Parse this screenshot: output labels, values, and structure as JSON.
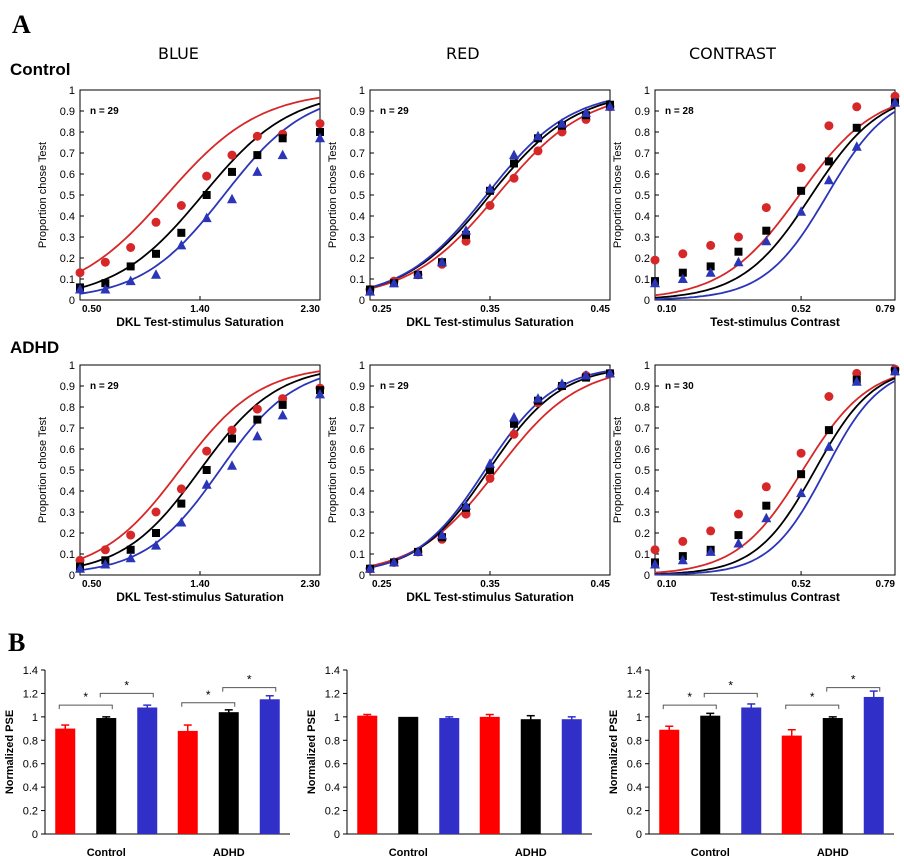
{
  "panel_a_label": "A",
  "panel_b_label": "B",
  "column_headers": [
    "BLUE",
    "RED",
    "CONTRAST"
  ],
  "row_headers": [
    "Control",
    "ADHD"
  ],
  "colors": {
    "red": "#d62828",
    "black": "#000000",
    "blue": "#2b35b8",
    "bar_red": "#ff0000",
    "bar_black": "#000000",
    "bar_blue": "#3030c8"
  },
  "chart_data": [
    {
      "id": "control-blue",
      "type": "scatter",
      "annotation": "n = 29",
      "xlabel": "DKL Test-stimulus Saturation",
      "ylabel": "Proportion chose Test",
      "xlim": [
        0.5,
        2.3
      ],
      "ylim": [
        0,
        1
      ],
      "xticks": [
        "0.50",
        "1.40",
        "2.30"
      ],
      "yticks": [
        "0",
        "0.1",
        "0.2",
        "0.3",
        "0.4",
        "0.5",
        "0.6",
        "0.7",
        "0.8",
        "0.9",
        "1"
      ],
      "fits": {
        "red": [
          1.15,
          0.35
        ],
        "black": [
          1.42,
          0.33
        ],
        "blue": [
          1.58,
          0.31
        ]
      },
      "series": [
        {
          "color": "red",
          "marker": "circle",
          "x": [
            0.5,
            0.69,
            0.88,
            1.07,
            1.26,
            1.45,
            1.64,
            1.83,
            2.02,
            2.3
          ],
          "y": [
            0.13,
            0.18,
            0.25,
            0.37,
            0.45,
            0.59,
            0.69,
            0.78,
            0.79,
            0.84
          ]
        },
        {
          "color": "black",
          "marker": "square",
          "x": [
            0.5,
            0.69,
            0.88,
            1.07,
            1.26,
            1.45,
            1.64,
            1.83,
            2.02,
            2.3
          ],
          "y": [
            0.06,
            0.08,
            0.16,
            0.22,
            0.32,
            0.5,
            0.61,
            0.69,
            0.77,
            0.8
          ]
        },
        {
          "color": "blue",
          "marker": "triangle",
          "x": [
            0.5,
            0.69,
            0.88,
            1.07,
            1.26,
            1.45,
            1.64,
            1.83,
            2.02,
            2.3
          ],
          "y": [
            0.05,
            0.05,
            0.09,
            0.12,
            0.26,
            0.39,
            0.48,
            0.61,
            0.69,
            0.77
          ]
        }
      ]
    },
    {
      "id": "control-red",
      "type": "scatter",
      "annotation": "n = 29",
      "xlabel": "DKL Test-stimulus Saturation",
      "ylabel": "Proportion chose Test",
      "xlim": [
        0.25,
        0.45
      ],
      "ylim": [
        0,
        1
      ],
      "xticks": [
        "0.25",
        "0.35",
        "0.45"
      ],
      "yticks": [
        "0",
        "0.1",
        "0.2",
        "0.3",
        "0.4",
        "0.5",
        "0.6",
        "0.7",
        "0.8",
        "0.9",
        "1"
      ],
      "fits": {
        "red": [
          0.356,
          0.037
        ],
        "black": [
          0.35,
          0.036
        ],
        "blue": [
          0.347,
          0.035
        ]
      },
      "series": [
        {
          "color": "red",
          "marker": "circle",
          "x": [
            0.25,
            0.27,
            0.29,
            0.31,
            0.33,
            0.35,
            0.37,
            0.39,
            0.41,
            0.43,
            0.45
          ],
          "y": [
            0.05,
            0.09,
            0.12,
            0.17,
            0.28,
            0.45,
            0.58,
            0.71,
            0.8,
            0.86,
            0.92
          ]
        },
        {
          "color": "black",
          "marker": "square",
          "x": [
            0.25,
            0.27,
            0.29,
            0.31,
            0.33,
            0.35,
            0.37,
            0.39,
            0.41,
            0.43,
            0.45
          ],
          "y": [
            0.05,
            0.08,
            0.12,
            0.18,
            0.31,
            0.52,
            0.65,
            0.77,
            0.83,
            0.88,
            0.93
          ]
        },
        {
          "color": "blue",
          "marker": "triangle",
          "x": [
            0.25,
            0.27,
            0.29,
            0.31,
            0.33,
            0.35,
            0.37,
            0.39,
            0.41,
            0.43,
            0.45
          ],
          "y": [
            0.04,
            0.08,
            0.12,
            0.18,
            0.33,
            0.53,
            0.69,
            0.78,
            0.84,
            0.89,
            0.92
          ]
        }
      ]
    },
    {
      "id": "control-contrast",
      "type": "scatter",
      "annotation": "n = 28",
      "xlabel": "Test-stimulus Contrast",
      "ylabel": "Proportion chose Test",
      "xlim": [
        0.1,
        0.79
      ],
      "ylim": [
        0,
        1
      ],
      "xticks": [
        "0.10",
        "0.52",
        "0.79"
      ],
      "yticks": [
        "0",
        "0.1",
        "0.2",
        "0.3",
        "0.4",
        "0.5",
        "0.6",
        "0.7",
        "0.8",
        "0.9",
        "1"
      ],
      "fits": {
        "red": [
          0.515,
          0.11
        ],
        "black": [
          0.55,
          0.1
        ],
        "blue": [
          0.595,
          0.09
        ]
      },
      "series": [
        {
          "color": "red",
          "marker": "circle",
          "x": [
            0.1,
            0.18,
            0.26,
            0.34,
            0.42,
            0.52,
            0.6,
            0.68,
            0.79
          ],
          "y": [
            0.19,
            0.22,
            0.26,
            0.3,
            0.44,
            0.63,
            0.83,
            0.92,
            0.97
          ]
        },
        {
          "color": "black",
          "marker": "square",
          "x": [
            0.1,
            0.18,
            0.26,
            0.34,
            0.42,
            0.52,
            0.6,
            0.68,
            0.79
          ],
          "y": [
            0.09,
            0.13,
            0.16,
            0.23,
            0.33,
            0.52,
            0.66,
            0.82,
            0.94
          ]
        },
        {
          "color": "blue",
          "marker": "triangle",
          "x": [
            0.1,
            0.18,
            0.26,
            0.34,
            0.42,
            0.52,
            0.6,
            0.68,
            0.79
          ],
          "y": [
            0.08,
            0.1,
            0.13,
            0.18,
            0.28,
            0.42,
            0.57,
            0.73,
            0.94
          ]
        }
      ]
    },
    {
      "id": "adhd-blue",
      "type": "scatter",
      "annotation": "n = 29",
      "xlabel": "DKL Test-stimulus Saturation",
      "ylabel": "Proportion chose Test",
      "xlim": [
        0.5,
        2.3
      ],
      "ylim": [
        0,
        1
      ],
      "xticks": [
        "0.50",
        "1.40",
        "2.30"
      ],
      "yticks": [
        "0",
        "0.1",
        "0.2",
        "0.3",
        "0.4",
        "0.5",
        "0.6",
        "0.7",
        "0.8",
        "0.9",
        "1"
      ],
      "fits": {
        "red": [
          1.25,
          0.3
        ],
        "black": [
          1.4,
          0.29
        ],
        "blue": [
          1.55,
          0.28
        ]
      },
      "series": [
        {
          "color": "red",
          "marker": "circle",
          "x": [
            0.5,
            0.69,
            0.88,
            1.07,
            1.26,
            1.45,
            1.64,
            1.83,
            2.02,
            2.3
          ],
          "y": [
            0.07,
            0.12,
            0.19,
            0.3,
            0.41,
            0.59,
            0.69,
            0.79,
            0.84,
            0.89
          ]
        },
        {
          "color": "black",
          "marker": "square",
          "x": [
            0.5,
            0.69,
            0.88,
            1.07,
            1.26,
            1.45,
            1.64,
            1.83,
            2.02,
            2.3
          ],
          "y": [
            0.04,
            0.07,
            0.12,
            0.2,
            0.34,
            0.5,
            0.65,
            0.74,
            0.81,
            0.88
          ]
        },
        {
          "color": "blue",
          "marker": "triangle",
          "x": [
            0.5,
            0.69,
            0.88,
            1.07,
            1.26,
            1.45,
            1.64,
            1.83,
            2.02,
            2.3
          ],
          "y": [
            0.03,
            0.05,
            0.08,
            0.14,
            0.25,
            0.43,
            0.52,
            0.66,
            0.76,
            0.86
          ]
        }
      ]
    },
    {
      "id": "adhd-red",
      "type": "scatter",
      "annotation": "n = 29",
      "xlabel": "DKL Test-stimulus Saturation",
      "ylabel": "Proportion chose Test",
      "xlim": [
        0.25,
        0.45
      ],
      "ylim": [
        0,
        1
      ],
      "xticks": [
        "0.25",
        "0.35",
        "0.45"
      ],
      "yticks": [
        "0",
        "0.1",
        "0.2",
        "0.3",
        "0.4",
        "0.5",
        "0.6",
        "0.7",
        "0.8",
        "0.9",
        "1"
      ],
      "fits": {
        "red": [
          0.356,
          0.034
        ],
        "black": [
          0.349,
          0.03
        ],
        "blue": [
          0.346,
          0.029
        ]
      },
      "series": [
        {
          "color": "red",
          "marker": "circle",
          "x": [
            0.25,
            0.27,
            0.29,
            0.31,
            0.33,
            0.35,
            0.37,
            0.39,
            0.41,
            0.43,
            0.45
          ],
          "y": [
            0.03,
            0.06,
            0.11,
            0.17,
            0.29,
            0.46,
            0.67,
            0.82,
            0.9,
            0.95,
            0.96
          ]
        },
        {
          "color": "black",
          "marker": "square",
          "x": [
            0.25,
            0.27,
            0.29,
            0.31,
            0.33,
            0.35,
            0.37,
            0.39,
            0.41,
            0.43,
            0.45
          ],
          "y": [
            0.03,
            0.06,
            0.11,
            0.18,
            0.32,
            0.5,
            0.72,
            0.83,
            0.9,
            0.94,
            0.96
          ]
        },
        {
          "color": "blue",
          "marker": "triangle",
          "x": [
            0.25,
            0.27,
            0.29,
            0.31,
            0.33,
            0.35,
            0.37,
            0.39,
            0.41,
            0.43,
            0.45
          ],
          "y": [
            0.03,
            0.06,
            0.11,
            0.19,
            0.33,
            0.53,
            0.75,
            0.84,
            0.91,
            0.95,
            0.96
          ]
        }
      ]
    },
    {
      "id": "adhd-contrast",
      "type": "scatter",
      "annotation": "n = 30",
      "xlabel": "Test-stimulus Contrast",
      "ylabel": "Proportion chose Test",
      "xlim": [
        0.1,
        0.79
      ],
      "ylim": [
        0,
        1
      ],
      "xticks": [
        "0.10",
        "0.52",
        "0.79"
      ],
      "yticks": [
        "0",
        "0.1",
        "0.2",
        "0.3",
        "0.4",
        "0.5",
        "0.6",
        "0.7",
        "0.8",
        "0.9",
        "1"
      ],
      "fits": {
        "red": [
          0.525,
          0.095
        ],
        "black": [
          0.56,
          0.085
        ],
        "blue": [
          0.59,
          0.08
        ]
      },
      "series": [
        {
          "color": "red",
          "marker": "circle",
          "x": [
            0.1,
            0.18,
            0.26,
            0.34,
            0.42,
            0.52,
            0.6,
            0.68,
            0.79
          ],
          "y": [
            0.12,
            0.16,
            0.21,
            0.29,
            0.42,
            0.58,
            0.85,
            0.96,
            0.98
          ]
        },
        {
          "color": "black",
          "marker": "square",
          "x": [
            0.1,
            0.18,
            0.26,
            0.34,
            0.42,
            0.52,
            0.6,
            0.68,
            0.79
          ],
          "y": [
            0.06,
            0.09,
            0.12,
            0.19,
            0.33,
            0.48,
            0.69,
            0.93,
            0.97
          ]
        },
        {
          "color": "blue",
          "marker": "triangle",
          "x": [
            0.1,
            0.18,
            0.26,
            0.34,
            0.42,
            0.52,
            0.6,
            0.68,
            0.79
          ],
          "y": [
            0.05,
            0.07,
            0.11,
            0.15,
            0.27,
            0.39,
            0.61,
            0.92,
            0.97
          ]
        }
      ]
    },
    {
      "id": "pse-blue",
      "type": "bar",
      "ylabel": "Normalized PSE",
      "ylim": [
        0,
        1.4
      ],
      "yticks": [
        "0",
        "0.2",
        "0.4",
        "0.6",
        "0.8",
        "1",
        "1.2",
        "1.4"
      ],
      "categories": [
        "Control",
        "ADHD"
      ],
      "series": [
        {
          "color": "red",
          "values": [
            0.9,
            0.88
          ],
          "errors": [
            0.03,
            0.05
          ]
        },
        {
          "color": "black",
          "values": [
            0.99,
            1.04
          ],
          "errors": [
            0.01,
            0.02
          ]
        },
        {
          "color": "blue",
          "values": [
            1.08,
            1.15
          ],
          "errors": [
            0.02,
            0.03
          ]
        }
      ],
      "significance": [
        {
          "group": 0,
          "from": 0,
          "to": 1,
          "level": 1.1,
          "label": "*"
        },
        {
          "group": 0,
          "from": 1,
          "to": 2,
          "level": 1.2,
          "label": "*"
        },
        {
          "group": 1,
          "from": 0,
          "to": 1,
          "level": 1.12,
          "label": "*"
        },
        {
          "group": 1,
          "from": 1,
          "to": 2,
          "level": 1.25,
          "label": "*"
        }
      ]
    },
    {
      "id": "pse-red",
      "type": "bar",
      "ylabel": "Normalized PSE",
      "ylim": [
        0,
        1.4
      ],
      "yticks": [
        "0",
        "0.2",
        "0.4",
        "0.6",
        "0.8",
        "1",
        "1.2",
        "1.4"
      ],
      "categories": [
        "Control",
        "ADHD"
      ],
      "series": [
        {
          "color": "red",
          "values": [
            1.01,
            1.0
          ],
          "errors": [
            0.01,
            0.02
          ]
        },
        {
          "color": "black",
          "values": [
            1.0,
            0.98
          ],
          "errors": [
            0.0,
            0.03
          ]
        },
        {
          "color": "blue",
          "values": [
            0.99,
            0.98
          ],
          "errors": [
            0.01,
            0.02
          ]
        }
      ],
      "significance": []
    },
    {
      "id": "pse-contrast",
      "type": "bar",
      "ylabel": "Normalized PSE",
      "ylim": [
        0,
        1.4
      ],
      "yticks": [
        "0",
        "0.2",
        "0.4",
        "0.6",
        "0.8",
        "1",
        "1.2",
        "1.4"
      ],
      "categories": [
        "Control",
        "ADHD"
      ],
      "series": [
        {
          "color": "red",
          "values": [
            0.89,
            0.84
          ],
          "errors": [
            0.03,
            0.05
          ]
        },
        {
          "color": "black",
          "values": [
            1.01,
            0.99
          ],
          "errors": [
            0.02,
            0.01
          ]
        },
        {
          "color": "blue",
          "values": [
            1.08,
            1.17
          ],
          "errors": [
            0.03,
            0.05
          ]
        }
      ],
      "significance": [
        {
          "group": 0,
          "from": 0,
          "to": 1,
          "level": 1.1,
          "label": "*"
        },
        {
          "group": 0,
          "from": 1,
          "to": 2,
          "level": 1.2,
          "label": "*"
        },
        {
          "group": 1,
          "from": 0,
          "to": 1,
          "level": 1.1,
          "label": "*"
        },
        {
          "group": 1,
          "from": 1,
          "to": 2,
          "level": 1.25,
          "label": "*"
        }
      ]
    }
  ]
}
